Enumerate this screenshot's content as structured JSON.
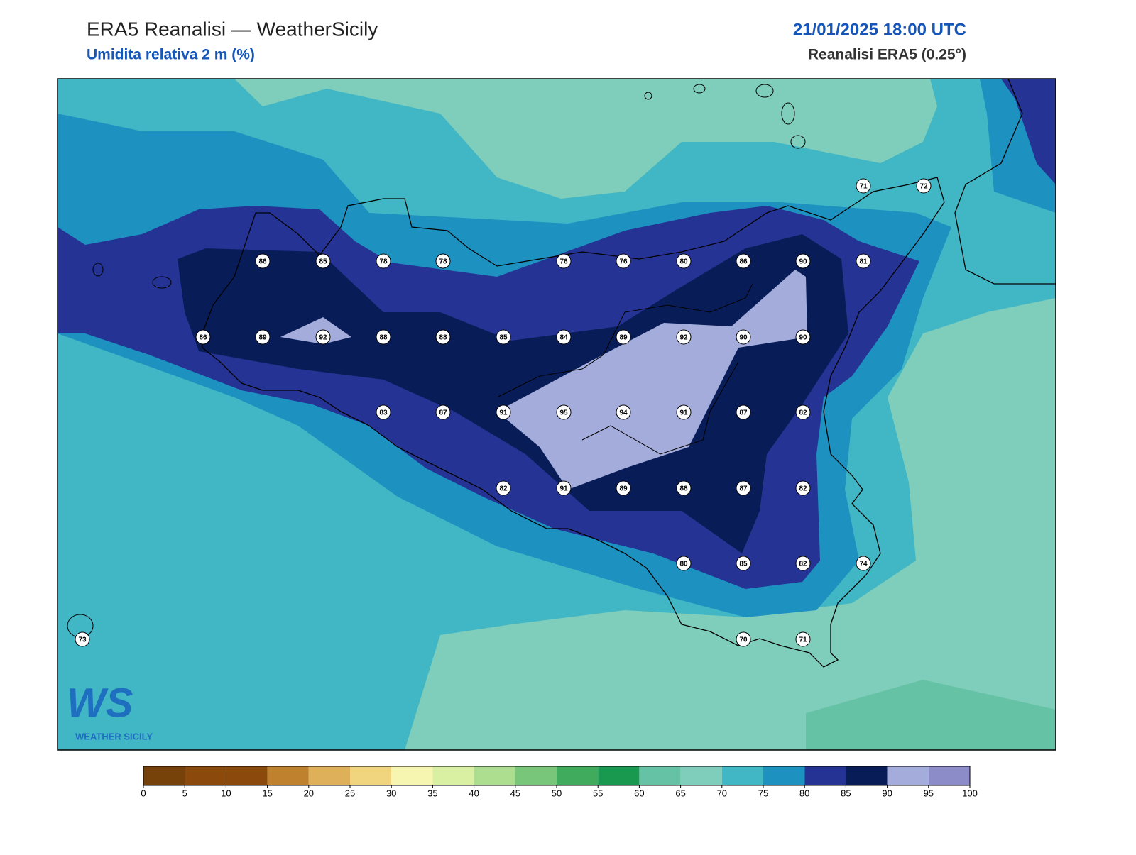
{
  "header": {
    "title": "ERA5 Reanalisi — WeatherSicily",
    "subtitle": "Umidita relativa 2 m (%)",
    "datetime": "21/01/2025 18:00 UTC",
    "source": "Reanalisi ERA5 (0.25°)"
  },
  "stations": [
    71,
    72,
    86,
    85,
    78,
    78,
    76,
    76,
    80,
    86,
    90,
    81,
    86,
    89,
    92,
    88,
    88,
    85,
    84,
    89,
    92,
    90,
    90,
    83,
    87,
    91,
    95,
    94,
    91,
    87,
    82,
    82,
    91,
    89,
    88,
    87,
    82,
    80,
    85,
    82,
    74,
    73,
    70,
    71
  ],
  "colorbar": {
    "ticks": [
      0,
      5,
      10,
      15,
      20,
      25,
      30,
      35,
      40,
      45,
      50,
      55,
      60,
      65,
      70,
      75,
      80,
      85,
      90,
      95,
      100
    ],
    "colors": [
      "#77420a",
      "#8b4a0c",
      "#8b4a0c",
      "#bf812d",
      "#dfb05a",
      "#f0d47e",
      "#f6f6b0",
      "#d9f0a3",
      "#addd8e",
      "#78c679",
      "#41ab5d",
      "#199950",
      "#66c2a4",
      "#7fcdbb",
      "#41b6c4",
      "#1d91c0",
      "#253494",
      "#081d58",
      "#a3acda",
      "#8c8cc8"
    ]
  },
  "logo": {
    "mark": "WS",
    "text": "WEATHER SICILY"
  }
}
